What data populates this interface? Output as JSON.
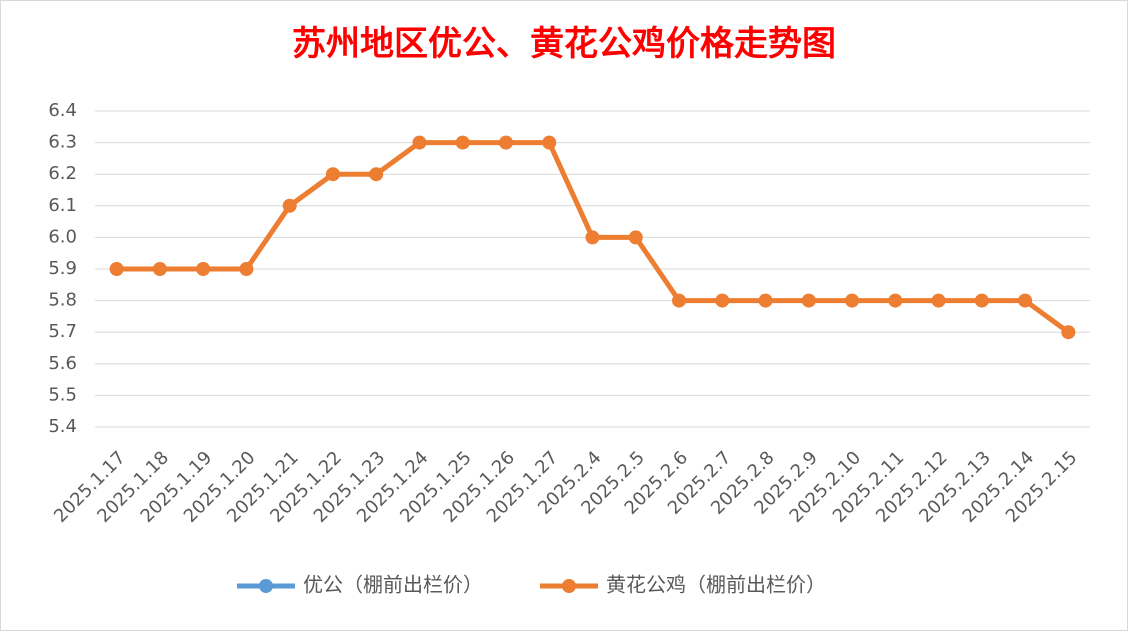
{
  "chart_data": {
    "type": "line",
    "title": "苏州地区优公、黄花公鸡价格走势图",
    "categories": [
      "2025.1.17",
      "2025.1.18",
      "2025.1.19",
      "2025.1.20",
      "2025.1.21",
      "2025.1.22",
      "2025.1.23",
      "2025.1.24",
      "2025.1.25",
      "2025.1.26",
      "2025.1.27",
      "2025.2.4",
      "2025.2.5",
      "2025.2.6",
      "2025.2.7",
      "2025.2.8",
      "2025.2.9",
      "2025.2.10",
      "2025.2.11",
      "2025.2.12",
      "2025.2.13",
      "2025.2.14",
      "2025.2.15"
    ],
    "series": [
      {
        "name": "优公（棚前出栏价）",
        "color": "#5b9bd5",
        "values": [
          null,
          null,
          null,
          null,
          null,
          null,
          null,
          null,
          null,
          null,
          null,
          null,
          null,
          null,
          null,
          null,
          null,
          null,
          null,
          null,
          null,
          null,
          null
        ]
      },
      {
        "name": "黄花公鸡（棚前出栏价）",
        "color": "#ed7d31",
        "values": [
          5.9,
          5.9,
          5.9,
          5.9,
          6.1,
          6.2,
          6.2,
          6.3,
          6.3,
          6.3,
          6.3,
          6.0,
          6.0,
          5.8,
          5.8,
          5.8,
          5.8,
          5.8,
          5.8,
          5.8,
          5.8,
          5.8,
          5.7
        ]
      }
    ],
    "ylim": [
      5.4,
      6.4
    ],
    "yticks": [
      5.4,
      5.5,
      5.6,
      5.7,
      5.8,
      5.9,
      {
        "value": 6,
        "label": "6.0"
      },
      6.1,
      6.2,
      6.3,
      6.4
    ],
    "grid": true,
    "legend": "bottom"
  }
}
